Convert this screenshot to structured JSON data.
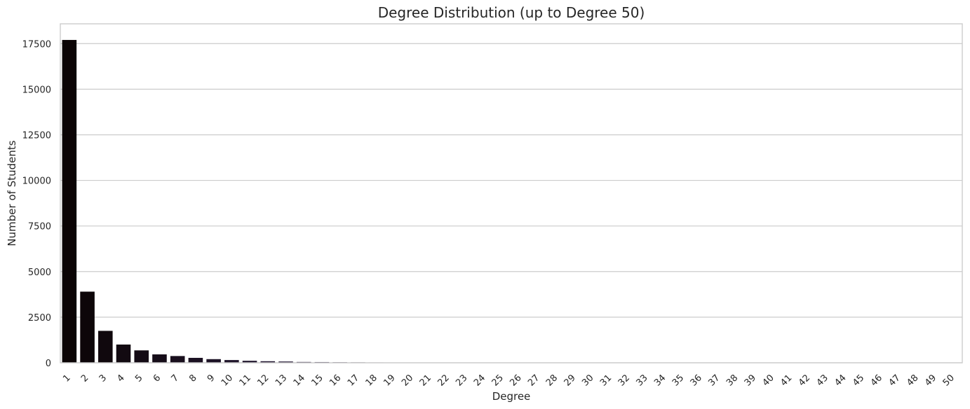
{
  "chart_data": {
    "type": "bar",
    "title": "Degree Distribution (up to Degree 50)",
    "xlabel": "Degree",
    "ylabel": "Number of Students",
    "categories": [
      "1",
      "2",
      "3",
      "4",
      "5",
      "6",
      "7",
      "8",
      "9",
      "10",
      "11",
      "12",
      "13",
      "14",
      "15",
      "16",
      "17",
      "18",
      "19",
      "20",
      "21",
      "22",
      "23",
      "24",
      "25",
      "26",
      "27",
      "28",
      "29",
      "30",
      "31",
      "32",
      "33",
      "34",
      "35",
      "36",
      "37",
      "38",
      "39",
      "40",
      "41",
      "42",
      "43",
      "44",
      "45",
      "46",
      "47",
      "48",
      "49",
      "50"
    ],
    "values": [
      17700,
      3900,
      1750,
      1000,
      680,
      460,
      370,
      270,
      200,
      150,
      110,
      85,
      70,
      45,
      40,
      30,
      25,
      20,
      18,
      15,
      12,
      10,
      9,
      8,
      7,
      6,
      5,
      5,
      4,
      4,
      3,
      3,
      3,
      2,
      2,
      2,
      2,
      2,
      2,
      1,
      1,
      1,
      1,
      1,
      1,
      1,
      1,
      1,
      1,
      1
    ],
    "yticks": [
      0,
      2500,
      5000,
      7500,
      10000,
      12500,
      15000,
      17500
    ],
    "ylim": [
      0,
      18585
    ],
    "grid": true,
    "legend": "none",
    "colors": {
      "bar_start": "#0b0405",
      "bar_end": "#2b1e3e",
      "grid": "#cccccc",
      "frame": "#cccccc"
    }
  }
}
